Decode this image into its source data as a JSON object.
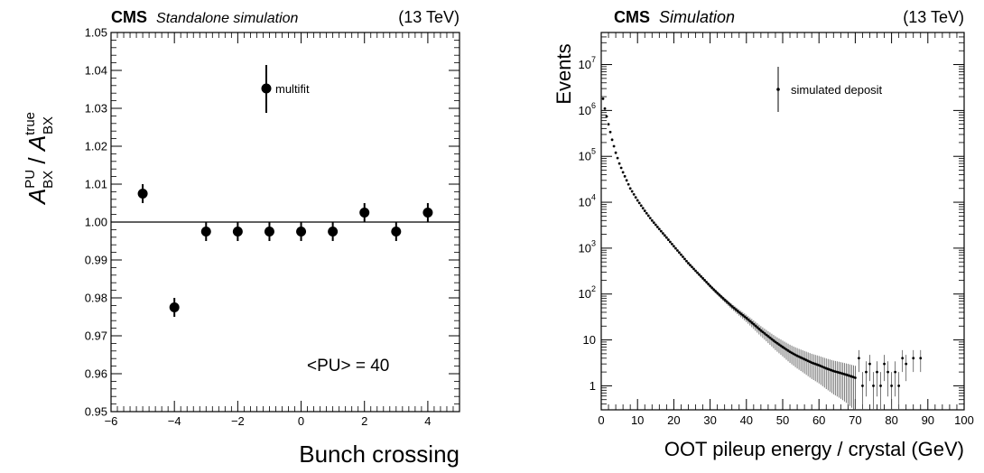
{
  "chart_data": [
    {
      "type": "scatter",
      "header": {
        "experiment": "CMS",
        "label": "Standalone simulation",
        "energy": "(13 TeV)"
      },
      "xlabel": "Bunch crossing",
      "ylabel": {
        "A": "A",
        "sup_num": "PU",
        "sub_num": "BX",
        "slash": " / ",
        "sup_den": "true",
        "sub_den": "BX"
      },
      "xlim": [
        -6,
        5
      ],
      "ylim": [
        0.95,
        1.05
      ],
      "xticks": [
        -6,
        -4,
        -2,
        0,
        2,
        4
      ],
      "xtick_labels": [
        "−6",
        "−4",
        "−2",
        "0",
        "2",
        "4"
      ],
      "yticks": [
        0.95,
        0.96,
        0.97,
        0.98,
        0.99,
        1.0,
        1.01,
        1.02,
        1.03,
        1.04,
        1.05
      ],
      "ytick_labels": [
        "0.95",
        "0.96",
        "0.97",
        "0.98",
        "0.99",
        "1.00",
        "1.01",
        "1.02",
        "1.03",
        "1.04",
        "1.05"
      ],
      "reference_line": 1.0,
      "legend": {
        "entries": [
          "multifit"
        ],
        "placement": "top-center"
      },
      "annotation": "<PU> = 40",
      "series": [
        {
          "name": "multifit",
          "x": [
            -5,
            -4,
            -3,
            -2,
            -1,
            0,
            1,
            2,
            3,
            4
          ],
          "y": [
            1.0075,
            0.9775,
            0.9975,
            0.9975,
            0.9975,
            0.9975,
            0.9975,
            1.0025,
            0.9975,
            1.0025
          ],
          "yerr": [
            0.0025,
            0.0025,
            0.0025,
            0.0025,
            0.0025,
            0.0025,
            0.0025,
            0.0025,
            0.0025,
            0.0025
          ]
        }
      ]
    },
    {
      "type": "scatter",
      "header": {
        "experiment": "CMS",
        "label": "Simulation",
        "energy": "(13 TeV)"
      },
      "xlabel": "OOT pileup energy / crystal (GeV)",
      "ylabel": "Events",
      "xlim": [
        0,
        100
      ],
      "yscale": "log",
      "ylim": [
        0.3,
        50000000
      ],
      "xticks": [
        0,
        10,
        20,
        30,
        40,
        50,
        60,
        70,
        80,
        90,
        100
      ],
      "xtick_labels": [
        "0",
        "10",
        "20",
        "30",
        "40",
        "50",
        "60",
        "70",
        "80",
        "90",
        "100"
      ],
      "yticks": [
        1,
        10,
        100,
        1000,
        10000,
        100000,
        1000000,
        10000000
      ],
      "ytick_labels": [
        {
          "base": "1",
          "exp": ""
        },
        {
          "base": "10",
          "exp": ""
        },
        {
          "base": "10",
          "exp": "2"
        },
        {
          "base": "10",
          "exp": "3"
        },
        {
          "base": "10",
          "exp": "4"
        },
        {
          "base": "10",
          "exp": "5"
        },
        {
          "base": "10",
          "exp": "6"
        },
        {
          "base": "10",
          "exp": "7"
        }
      ],
      "legend": {
        "entries": [
          "simulated deposit"
        ],
        "placement": "top-right"
      },
      "series": [
        {
          "name": "simulated deposit",
          "curve": [
            {
              "x": 0.5,
              "y": 1800000
            },
            {
              "x": 1,
              "y": 1100000
            },
            {
              "x": 2,
              "y": 500000
            },
            {
              "x": 3,
              "y": 230000
            },
            {
              "x": 4,
              "y": 120000
            },
            {
              "x": 5,
              "y": 70000
            },
            {
              "x": 6,
              "y": 45000
            },
            {
              "x": 7,
              "y": 30000
            },
            {
              "x": 8,
              "y": 20000
            },
            {
              "x": 10,
              "y": 11000
            },
            {
              "x": 12,
              "y": 6500
            },
            {
              "x": 14,
              "y": 4000
            },
            {
              "x": 16,
              "y": 2600
            },
            {
              "x": 18,
              "y": 1700
            },
            {
              "x": 20,
              "y": 1100
            },
            {
              "x": 22,
              "y": 720
            },
            {
              "x": 24,
              "y": 470
            },
            {
              "x": 26,
              "y": 320
            },
            {
              "x": 28,
              "y": 220
            },
            {
              "x": 30,
              "y": 150
            },
            {
              "x": 32,
              "y": 105
            },
            {
              "x": 34,
              "y": 75
            },
            {
              "x": 36,
              "y": 54
            },
            {
              "x": 38,
              "y": 40
            },
            {
              "x": 40,
              "y": 30
            },
            {
              "x": 42,
              "y": 22
            },
            {
              "x": 44,
              "y": 16
            },
            {
              "x": 46,
              "y": 12
            },
            {
              "x": 48,
              "y": 9
            },
            {
              "x": 50,
              "y": 7
            },
            {
              "x": 52,
              "y": 5.5
            },
            {
              "x": 54,
              "y": 4.5
            },
            {
              "x": 56,
              "y": 3.8
            },
            {
              "x": 58,
              "y": 3.2
            },
            {
              "x": 60,
              "y": 2.8
            },
            {
              "x": 62,
              "y": 2.4
            },
            {
              "x": 64,
              "y": 2.1
            },
            {
              "x": 66,
              "y": 1.9
            },
            {
              "x": 68,
              "y": 1.7
            },
            {
              "x": 70,
              "y": 1.5
            }
          ],
          "tail_points": [
            {
              "x": 71,
              "y": 4
            },
            {
              "x": 72,
              "y": 1
            },
            {
              "x": 73,
              "y": 2
            },
            {
              "x": 74,
              "y": 3
            },
            {
              "x": 75,
              "y": 1
            },
            {
              "x": 76,
              "y": 2
            },
            {
              "x": 77,
              "y": 1
            },
            {
              "x": 78,
              "y": 3
            },
            {
              "x": 79,
              "y": 2
            },
            {
              "x": 80,
              "y": 1
            },
            {
              "x": 81,
              "y": 2
            },
            {
              "x": 82,
              "y": 1
            },
            {
              "x": 83,
              "y": 4
            },
            {
              "x": 84,
              "y": 3
            },
            {
              "x": 86,
              "y": 4
            },
            {
              "x": 88,
              "y": 4
            }
          ]
        }
      ]
    }
  ]
}
